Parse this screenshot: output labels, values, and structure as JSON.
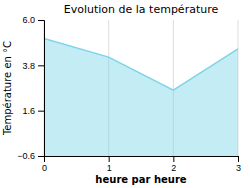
{
  "chart_data": {
    "type": "area",
    "title": "Evolution de la température",
    "xlabel": "heure par heure",
    "ylabel": "Température en °C",
    "x": [
      0,
      1,
      2,
      3
    ],
    "values": [
      5.1,
      4.2,
      2.6,
      4.6
    ],
    "color": "#7dd4e8",
    "xlim": [
      0,
      3
    ],
    "ylim": [
      -0.6,
      6.0
    ],
    "xticks": [
      0,
      1,
      2,
      3
    ],
    "yticks": [
      {
        "value": -0.6,
        "label": "−0.6"
      },
      1.6,
      3.8,
      {
        "value": 6.0,
        "label": "6.0"
      }
    ],
    "grid": "x"
  }
}
